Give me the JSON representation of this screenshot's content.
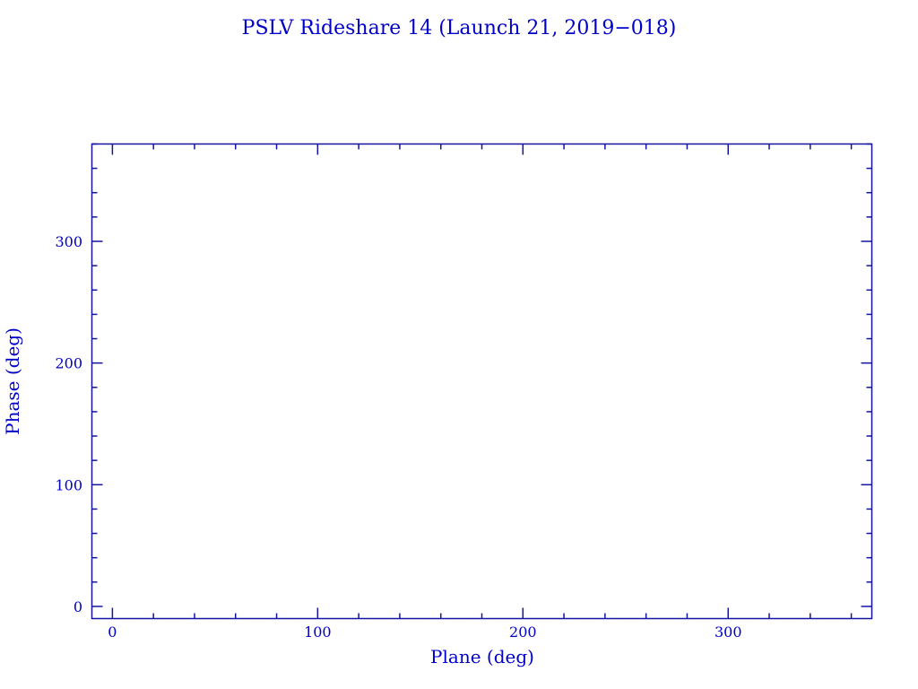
{
  "chart_data": {
    "type": "scatter",
    "title": "PSLV Rideshare 14 (Launch 21, 2019−018)",
    "xlabel": "Plane (deg)",
    "ylabel": "Phase (deg)",
    "xlim": [
      -10,
      370
    ],
    "ylim": [
      -10,
      380
    ],
    "x_major_ticks": [
      0,
      100,
      200,
      300
    ],
    "x_tick_labels": [
      "0",
      "100",
      "200",
      "300"
    ],
    "x_minor_step": 20,
    "y_major_ticks": [
      0,
      100,
      200,
      300
    ],
    "y_tick_labels": [
      "0",
      "100",
      "200",
      "300"
    ],
    "y_minor_step": 20,
    "grid": false,
    "points": [],
    "colors": {
      "axes": "#1414a0",
      "text": "#0000c8"
    }
  }
}
